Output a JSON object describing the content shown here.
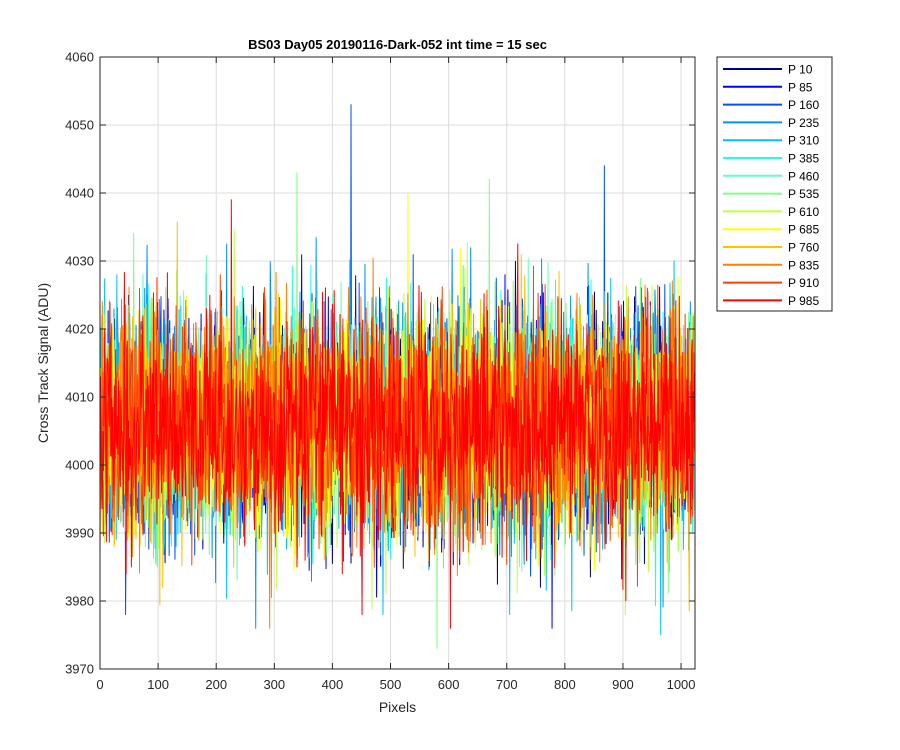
{
  "chart_data": {
    "type": "line",
    "title": "BS03 Day05 20190116-Dark-052 int time = 15 sec",
    "xlabel": "Pixels",
    "ylabel": "Cross Track Signal (ADU)",
    "xlim": [
      0,
      1024
    ],
    "ylim": [
      3970,
      4060
    ],
    "xticks": [
      0,
      100,
      200,
      300,
      400,
      500,
      600,
      700,
      800,
      900,
      1000
    ],
    "yticks": [
      3970,
      3980,
      3990,
      4000,
      4010,
      4020,
      4030,
      4040,
      4050,
      4060
    ],
    "grid": true,
    "legend_position": "outside-top-right",
    "series_stats": {
      "mean": 4006,
      "stdev": 8,
      "points_per_series": 1024
    },
    "series": [
      {
        "name": "P 10",
        "color": "#00008f"
      },
      {
        "name": "P 85",
        "color": "#0000ff"
      },
      {
        "name": "P 160",
        "color": "#0050ff"
      },
      {
        "name": "P 235",
        "color": "#0090ff"
      },
      {
        "name": "P 310",
        "color": "#00c0ff"
      },
      {
        "name": "P 385",
        "color": "#20ffe0"
      },
      {
        "name": "P 460",
        "color": "#60ffc0"
      },
      {
        "name": "P 535",
        "color": "#80ff80"
      },
      {
        "name": "P 610",
        "color": "#c0ff40"
      },
      {
        "name": "P 685",
        "color": "#ffff00"
      },
      {
        "name": "P 760",
        "color": "#ffc000"
      },
      {
        "name": "P 835",
        "color": "#ff8000"
      },
      {
        "name": "P 910",
        "color": "#ff4000"
      },
      {
        "name": "P 985",
        "color": "#ff0000"
      }
    ],
    "annotations": [
      {
        "series": "P 160",
        "x": 432,
        "y": 4053
      },
      {
        "series": "P 160",
        "x": 868,
        "y": 4044
      },
      {
        "series": "P 535",
        "x": 339,
        "y": 4043
      },
      {
        "series": "P 535",
        "x": 670,
        "y": 4042
      },
      {
        "series": "P 985",
        "x": 226,
        "y": 4039
      },
      {
        "series": "P 685",
        "x": 530,
        "y": 4040
      },
      {
        "series": "P 535",
        "x": 580,
        "y": 3973
      },
      {
        "series": "P 310",
        "x": 965,
        "y": 3975
      },
      {
        "series": "P 235",
        "x": 268,
        "y": 3976
      },
      {
        "series": "P 835",
        "x": 292,
        "y": 3976
      },
      {
        "series": "P 85",
        "x": 778,
        "y": 3976
      },
      {
        "series": "P 985",
        "x": 603,
        "y": 3976
      }
    ]
  }
}
